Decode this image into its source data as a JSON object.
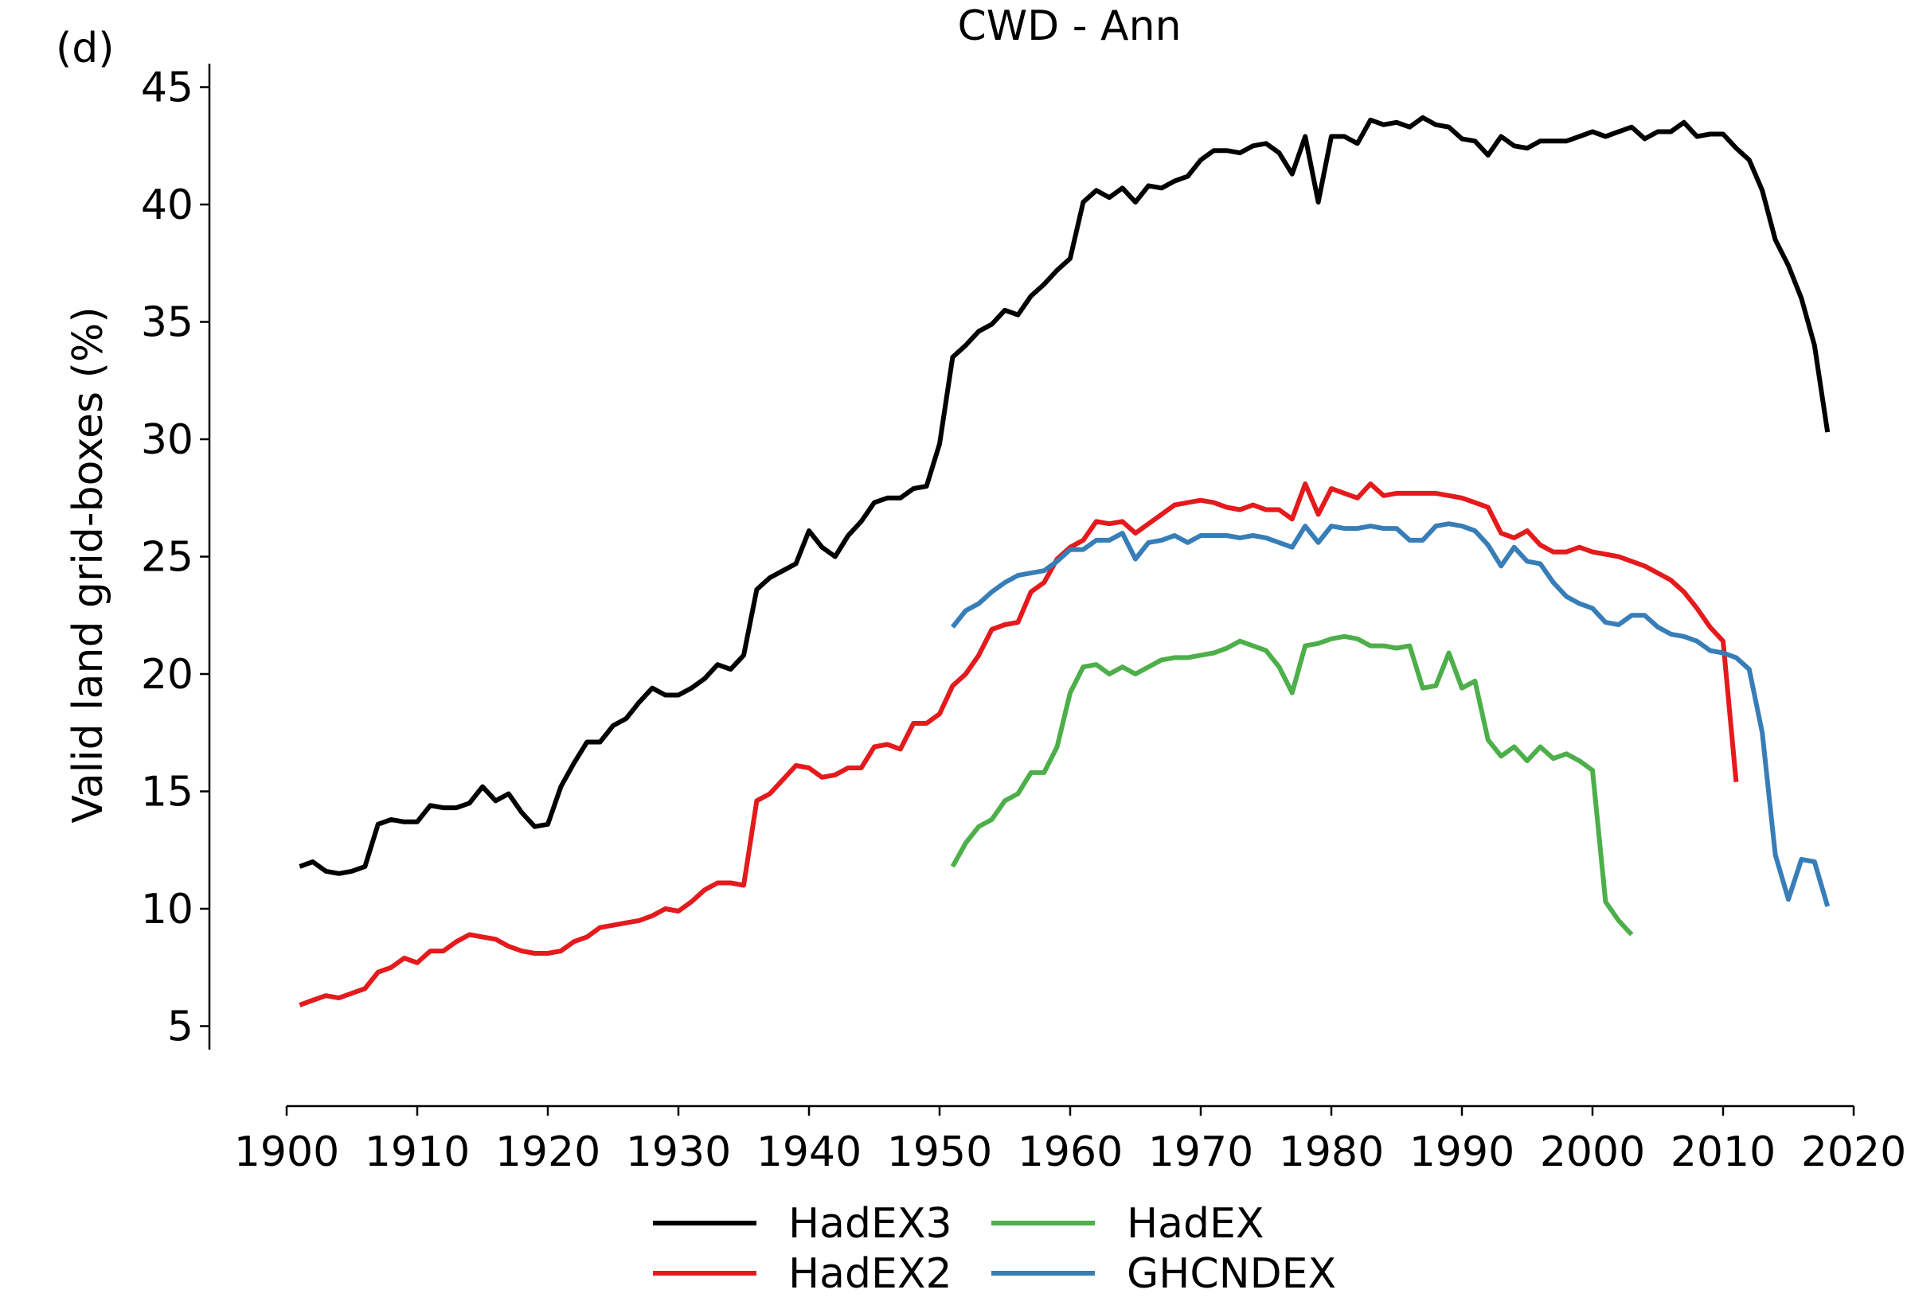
{
  "panel_label": "(d)",
  "chart_data": {
    "type": "line",
    "title": "CWD - Ann",
    "xlabel": "",
    "ylabel": "Valid land grid-boxes (%)",
    "xlim": [
      1900,
      2020
    ],
    "ylim": [
      4,
      46
    ],
    "xticks": [
      1900,
      1910,
      1920,
      1930,
      1940,
      1950,
      1960,
      1970,
      1980,
      1990,
      2000,
      2010,
      2020
    ],
    "yticks": [
      5,
      10,
      15,
      20,
      25,
      30,
      35,
      40,
      45
    ],
    "grid": false,
    "legend_position": "bottom",
    "series": [
      {
        "name": "HadEX3",
        "color": "#000000",
        "x_start": 1901,
        "values": [
          11.8,
          12.0,
          11.6,
          11.5,
          11.6,
          11.8,
          13.6,
          13.8,
          13.7,
          13.7,
          14.4,
          14.3,
          14.3,
          14.5,
          15.2,
          14.6,
          14.9,
          14.1,
          13.5,
          13.6,
          15.2,
          16.2,
          17.1,
          17.1,
          17.8,
          18.1,
          18.8,
          19.4,
          19.1,
          19.1,
          19.4,
          19.8,
          20.4,
          20.2,
          20.8,
          23.6,
          24.1,
          24.4,
          24.7,
          26.1,
          25.4,
          25.0,
          25.9,
          26.5,
          27.3,
          27.5,
          27.5,
          27.9,
          28.0,
          29.8,
          33.5,
          34.0,
          34.6,
          34.9,
          35.5,
          35.3,
          36.1,
          36.6,
          37.2,
          37.7,
          40.1,
          40.6,
          40.3,
          40.7,
          40.1,
          40.8,
          40.7,
          41.0,
          41.2,
          41.9,
          42.3,
          42.3,
          42.2,
          42.5,
          42.6,
          42.2,
          41.3,
          42.9,
          40.1,
          42.9,
          42.9,
          42.6,
          43.6,
          43.4,
          43.5,
          43.3,
          43.7,
          43.4,
          43.3,
          42.8,
          42.7,
          42.1,
          42.9,
          42.5,
          42.4,
          42.7,
          42.7,
          42.7,
          42.9,
          43.1,
          42.9,
          43.1,
          43.3,
          42.8,
          43.1,
          43.1,
          43.5,
          42.9,
          43.0,
          43.0,
          42.4,
          41.9,
          40.6,
          38.5,
          37.4,
          36.0,
          34.0,
          30.3
        ]
      },
      {
        "name": "HadEX2",
        "color": "#e41a1c",
        "x_start": 1901,
        "values": [
          5.9,
          6.1,
          6.3,
          6.2,
          6.4,
          6.6,
          7.3,
          7.5,
          7.9,
          7.7,
          8.2,
          8.2,
          8.6,
          8.9,
          8.8,
          8.7,
          8.4,
          8.2,
          8.1,
          8.1,
          8.2,
          8.6,
          8.8,
          9.2,
          9.3,
          9.4,
          9.5,
          9.7,
          10.0,
          9.9,
          10.3,
          10.8,
          11.1,
          11.1,
          11.0,
          14.6,
          14.9,
          15.5,
          16.1,
          16.0,
          15.6,
          15.7,
          16.0,
          16.0,
          16.9,
          17.0,
          16.8,
          17.9,
          17.9,
          18.3,
          19.5,
          20.0,
          20.8,
          21.9,
          22.1,
          22.2,
          23.5,
          23.9,
          24.9,
          25.4,
          25.7,
          26.5,
          26.4,
          26.5,
          26.0,
          26.4,
          26.8,
          27.2,
          27.3,
          27.4,
          27.3,
          27.1,
          27.0,
          27.2,
          27.0,
          27.0,
          26.6,
          28.1,
          26.8,
          27.9,
          27.7,
          27.5,
          28.1,
          27.6,
          27.7,
          27.7,
          27.7,
          27.7,
          27.6,
          27.5,
          27.3,
          27.1,
          26.0,
          25.8,
          26.1,
          25.5,
          25.2,
          25.2,
          25.4,
          25.2,
          25.1,
          25.0,
          24.8,
          24.6,
          24.3,
          24.0,
          23.5,
          22.8,
          22.0,
          21.4,
          15.4
        ]
      },
      {
        "name": "HadEX",
        "color": "#4daf4a",
        "x_start": 1951,
        "values": [
          11.8,
          12.8,
          13.5,
          13.8,
          14.6,
          14.9,
          15.8,
          15.8,
          16.9,
          19.2,
          20.3,
          20.4,
          20.0,
          20.3,
          20.0,
          20.3,
          20.6,
          20.7,
          20.7,
          20.8,
          20.9,
          21.1,
          21.4,
          21.2,
          21.0,
          20.3,
          19.2,
          21.2,
          21.3,
          21.5,
          21.6,
          21.5,
          21.2,
          21.2,
          21.1,
          21.2,
          19.4,
          19.5,
          20.9,
          19.4,
          19.7,
          17.2,
          16.5,
          16.9,
          16.3,
          16.9,
          16.4,
          16.6,
          16.3,
          15.9,
          10.3,
          9.5,
          8.9
        ]
      },
      {
        "name": "GHCNDEX",
        "color": "#377eb8",
        "x_start": 1951,
        "values": [
          22.0,
          22.7,
          23.0,
          23.5,
          23.9,
          24.2,
          24.3,
          24.4,
          24.8,
          25.3,
          25.3,
          25.7,
          25.7,
          26.0,
          24.9,
          25.6,
          25.7,
          25.9,
          25.6,
          25.9,
          25.9,
          25.9,
          25.8,
          25.9,
          25.8,
          25.6,
          25.4,
          26.3,
          25.6,
          26.3,
          26.2,
          26.2,
          26.3,
          26.2,
          26.2,
          25.7,
          25.7,
          26.3,
          26.4,
          26.3,
          26.1,
          25.5,
          24.6,
          25.4,
          24.8,
          24.7,
          23.9,
          23.3,
          23.0,
          22.8,
          22.2,
          22.1,
          22.5,
          22.5,
          22.0,
          21.7,
          21.6,
          21.4,
          21.0,
          20.9,
          20.7,
          20.2,
          17.5,
          12.3,
          10.4,
          12.1,
          12.0,
          10.1
        ]
      }
    ]
  }
}
